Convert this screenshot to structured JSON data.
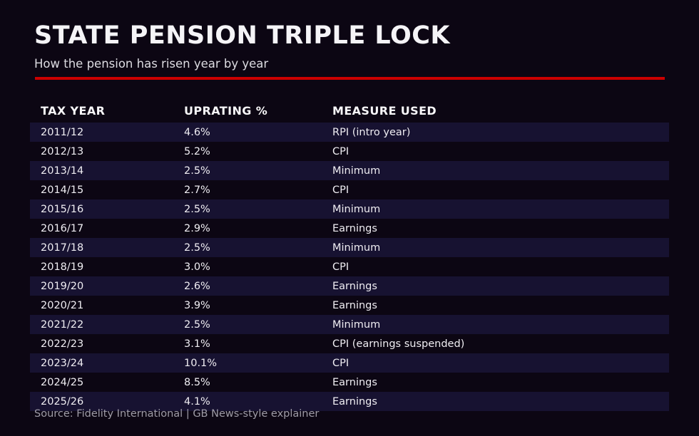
{
  "header": {
    "title": "STATE PENSION TRIPLE LOCK",
    "subtitle": "How the pension has risen year by year"
  },
  "footer": {
    "source": "Source: Fidelity International | GB News-style explainer"
  },
  "colors": {
    "background": "#0c0613",
    "row_stripe": "#171231",
    "accent_rule": "#cc0000",
    "text": "#efedf2",
    "muted_text": "#9e9ba6"
  },
  "chart_data": {
    "type": "table",
    "title": "STATE PENSION TRIPLE LOCK",
    "subtitle": "How the pension has risen year by year",
    "columns": [
      "TAX YEAR",
      "UPRATING %",
      "MEASURE USED"
    ],
    "rows": [
      [
        "2011/12",
        "4.6%",
        "RPI (intro year)"
      ],
      [
        "2012/13",
        "5.2%",
        "CPI"
      ],
      [
        "2013/14",
        "2.5%",
        "Minimum"
      ],
      [
        "2014/15",
        "2.7%",
        "CPI"
      ],
      [
        "2015/16",
        "2.5%",
        "Minimum"
      ],
      [
        "2016/17",
        "2.9%",
        "Earnings"
      ],
      [
        "2017/18",
        "2.5%",
        "Minimum"
      ],
      [
        "2018/19",
        "3.0%",
        "CPI"
      ],
      [
        "2019/20",
        "2.6%",
        "Earnings"
      ],
      [
        "2020/21",
        "3.9%",
        "Earnings"
      ],
      [
        "2021/22",
        "2.5%",
        "Minimum"
      ],
      [
        "2022/23",
        "3.1%",
        "CPI (earnings suspended)"
      ],
      [
        "2023/24",
        "10.1%",
        "CPI"
      ],
      [
        "2024/25",
        "8.5%",
        "Earnings"
      ],
      [
        "2025/26",
        "4.1%",
        "Earnings"
      ]
    ],
    "uprating_values_percent": [
      4.6,
      5.2,
      2.5,
      2.7,
      2.5,
      2.9,
      2.5,
      3.0,
      2.6,
      3.9,
      2.5,
      3.1,
      10.1,
      8.5,
      4.1
    ],
    "layout": {
      "striped_rows": "odd rows (1st, 3rd, ...) highlighted",
      "grid": false
    }
  }
}
